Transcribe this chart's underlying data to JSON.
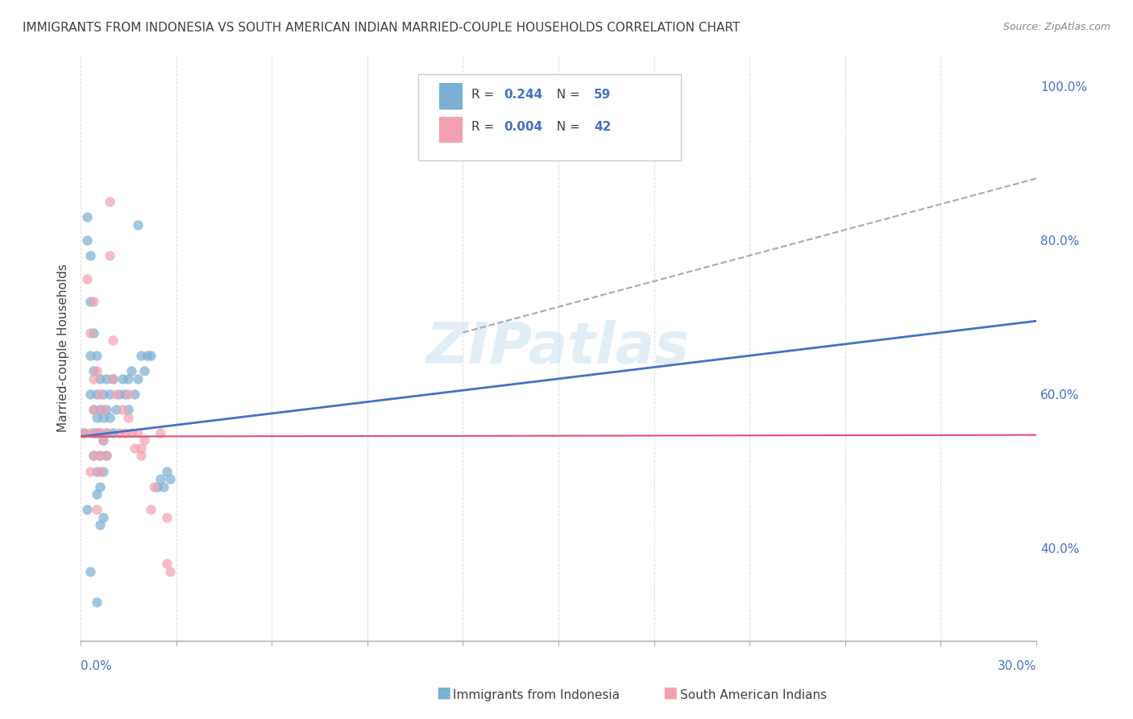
{
  "title": "IMMIGRANTS FROM INDONESIA VS SOUTH AMERICAN INDIAN MARRIED-COUPLE HOUSEHOLDS CORRELATION CHART",
  "source": "Source: ZipAtlas.com",
  "ylabel": "Married-couple Households",
  "R_blue": 0.244,
  "N_blue": 59,
  "R_pink": 0.004,
  "N_pink": 42,
  "legend_label_blue": "Immigrants from Indonesia",
  "legend_label_pink": "South American Indians",
  "blue_scatter": [
    [
      0.001,
      0.55
    ],
    [
      0.002,
      0.83
    ],
    [
      0.002,
      0.8
    ],
    [
      0.003,
      0.78
    ],
    [
      0.003,
      0.72
    ],
    [
      0.003,
      0.65
    ],
    [
      0.003,
      0.6
    ],
    [
      0.004,
      0.68
    ],
    [
      0.004,
      0.63
    ],
    [
      0.004,
      0.58
    ],
    [
      0.004,
      0.55
    ],
    [
      0.004,
      0.52
    ],
    [
      0.005,
      0.65
    ],
    [
      0.005,
      0.6
    ],
    [
      0.005,
      0.57
    ],
    [
      0.005,
      0.55
    ],
    [
      0.005,
      0.5
    ],
    [
      0.005,
      0.47
    ],
    [
      0.006,
      0.62
    ],
    [
      0.006,
      0.58
    ],
    [
      0.006,
      0.55
    ],
    [
      0.006,
      0.52
    ],
    [
      0.006,
      0.48
    ],
    [
      0.007,
      0.6
    ],
    [
      0.007,
      0.57
    ],
    [
      0.007,
      0.54
    ],
    [
      0.007,
      0.5
    ],
    [
      0.008,
      0.62
    ],
    [
      0.008,
      0.58
    ],
    [
      0.008,
      0.55
    ],
    [
      0.008,
      0.52
    ],
    [
      0.009,
      0.6
    ],
    [
      0.009,
      0.57
    ],
    [
      0.01,
      0.62
    ],
    [
      0.01,
      0.55
    ],
    [
      0.011,
      0.58
    ],
    [
      0.012,
      0.6
    ],
    [
      0.013,
      0.62
    ],
    [
      0.014,
      0.6
    ],
    [
      0.015,
      0.62
    ],
    [
      0.015,
      0.58
    ],
    [
      0.016,
      0.63
    ],
    [
      0.017,
      0.6
    ],
    [
      0.018,
      0.82
    ],
    [
      0.018,
      0.62
    ],
    [
      0.019,
      0.65
    ],
    [
      0.02,
      0.63
    ],
    [
      0.021,
      0.65
    ],
    [
      0.022,
      0.65
    ],
    [
      0.024,
      0.48
    ],
    [
      0.025,
      0.49
    ],
    [
      0.026,
      0.48
    ],
    [
      0.027,
      0.5
    ],
    [
      0.028,
      0.49
    ],
    [
      0.003,
      0.37
    ],
    [
      0.005,
      0.33
    ],
    [
      0.006,
      0.43
    ],
    [
      0.007,
      0.44
    ],
    [
      0.002,
      0.45
    ]
  ],
  "pink_scatter": [
    [
      0.001,
      0.55
    ],
    [
      0.002,
      0.75
    ],
    [
      0.003,
      0.55
    ],
    [
      0.003,
      0.68
    ],
    [
      0.004,
      0.72
    ],
    [
      0.004,
      0.62
    ],
    [
      0.004,
      0.58
    ],
    [
      0.005,
      0.63
    ],
    [
      0.005,
      0.55
    ],
    [
      0.006,
      0.6
    ],
    [
      0.006,
      0.55
    ],
    [
      0.006,
      0.5
    ],
    [
      0.007,
      0.58
    ],
    [
      0.007,
      0.54
    ],
    [
      0.008,
      0.55
    ],
    [
      0.008,
      0.52
    ],
    [
      0.009,
      0.85
    ],
    [
      0.009,
      0.78
    ],
    [
      0.01,
      0.67
    ],
    [
      0.01,
      0.62
    ],
    [
      0.011,
      0.6
    ],
    [
      0.012,
      0.55
    ],
    [
      0.013,
      0.58
    ],
    [
      0.014,
      0.55
    ],
    [
      0.015,
      0.6
    ],
    [
      0.015,
      0.57
    ],
    [
      0.016,
      0.55
    ],
    [
      0.017,
      0.53
    ],
    [
      0.018,
      0.55
    ],
    [
      0.019,
      0.52
    ],
    [
      0.019,
      0.53
    ],
    [
      0.02,
      0.54
    ],
    [
      0.022,
      0.45
    ],
    [
      0.023,
      0.48
    ],
    [
      0.025,
      0.55
    ],
    [
      0.027,
      0.44
    ],
    [
      0.004,
      0.52
    ],
    [
      0.005,
      0.45
    ],
    [
      0.006,
      0.52
    ],
    [
      0.027,
      0.38
    ],
    [
      0.028,
      0.37
    ],
    [
      0.003,
      0.5
    ]
  ],
  "blue_line_x": [
    0.0,
    0.3
  ],
  "blue_line_y": [
    0.545,
    0.695
  ],
  "pink_line_x": [
    0.0,
    0.3
  ],
  "pink_line_y": [
    0.545,
    0.547
  ],
  "dashed_line_x": [
    0.12,
    0.3
  ],
  "dashed_line_y": [
    0.68,
    0.88
  ],
  "bg_color": "#ffffff",
  "blue_color": "#7BAFD4",
  "pink_color": "#F4A0B0",
  "trend_blue": "#4472C4",
  "trend_pink": "#E05070",
  "trend_dashed": "#AAAAAA",
  "title_color": "#404040",
  "source_color": "#888888",
  "axis_label_color": "#4472C4",
  "legend_R_color": "#4472C4",
  "watermark": "ZIPatlas",
  "xmin": 0.0,
  "xmax": 0.3,
  "ymin": 0.28,
  "ymax": 1.04
}
